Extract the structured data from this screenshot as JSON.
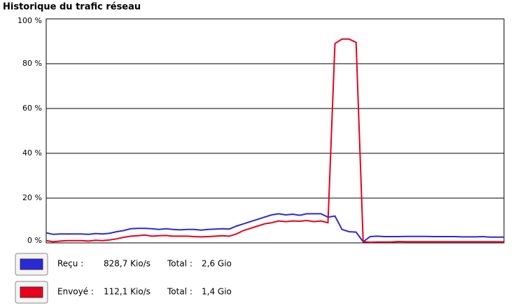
{
  "chart_data": {
    "type": "line",
    "title": "Historique du trafic réseau",
    "ylim": [
      0,
      100
    ],
    "yticks": [
      {
        "value": 0,
        "label": "0 %"
      },
      {
        "value": 20,
        "label": "20 %"
      },
      {
        "value": 40,
        "label": "40 %"
      },
      {
        "value": 60,
        "label": "60 %"
      },
      {
        "value": 80,
        "label": "80 %"
      },
      {
        "value": 100,
        "label": "100 %"
      }
    ],
    "grid": true,
    "series": [
      {
        "name": "Reçu :",
        "color": "#2a2ad8",
        "rate": "828,7 Kio/s",
        "total_label": "Total :",
        "total": "2,6 Gio",
        "values": [
          4.5,
          3.8,
          4,
          4,
          4,
          4,
          3.8,
          4.2,
          4,
          4.3,
          5,
          5.5,
          6.3,
          6.5,
          6.5,
          6.3,
          6,
          6.3,
          6,
          5.8,
          6,
          6,
          5.7,
          6,
          6.2,
          6.3,
          6.2,
          7.5,
          8.5,
          9.5,
          10.5,
          11.5,
          12.5,
          13,
          12.5,
          12.8,
          12.3,
          13,
          13,
          13,
          11.5,
          12,
          6,
          5,
          4.8,
          0.5,
          2.8,
          3,
          2.8,
          2.8,
          2.8,
          2.9,
          2.9,
          2.9,
          2.9,
          2.8,
          2.8,
          2.8,
          2.8,
          2.7,
          2.7,
          2.7,
          2.8,
          2.6,
          2.6,
          2.6
        ]
      },
      {
        "name": "Envoyé :",
        "color": "#e8001c",
        "rate": "112,1 Kio/s",
        "total_label": "Total :",
        "total": "1,4 Gio",
        "values": [
          1,
          0.5,
          0.8,
          1,
          1,
          1,
          0.8,
          1.2,
          1,
          1.3,
          1.8,
          2.5,
          3,
          3.2,
          3.5,
          3,
          3.2,
          3.3,
          3,
          3,
          3,
          2.8,
          2.7,
          2.8,
          3,
          3.2,
          3,
          4,
          5.5,
          6.5,
          7.5,
          8.5,
          9,
          9.8,
          9.5,
          9.8,
          9.7,
          10,
          9.5,
          9.8,
          9,
          89,
          91,
          91,
          89.5,
          0.5,
          0.3,
          0.4,
          0.4,
          0.4,
          0.6,
          0.5,
          0.5,
          0.5,
          0.5,
          0.5,
          0.5,
          0.5,
          0.5,
          0.5,
          0.5,
          0.5,
          0.5,
          0.5,
          0.5,
          0.5
        ]
      }
    ]
  }
}
